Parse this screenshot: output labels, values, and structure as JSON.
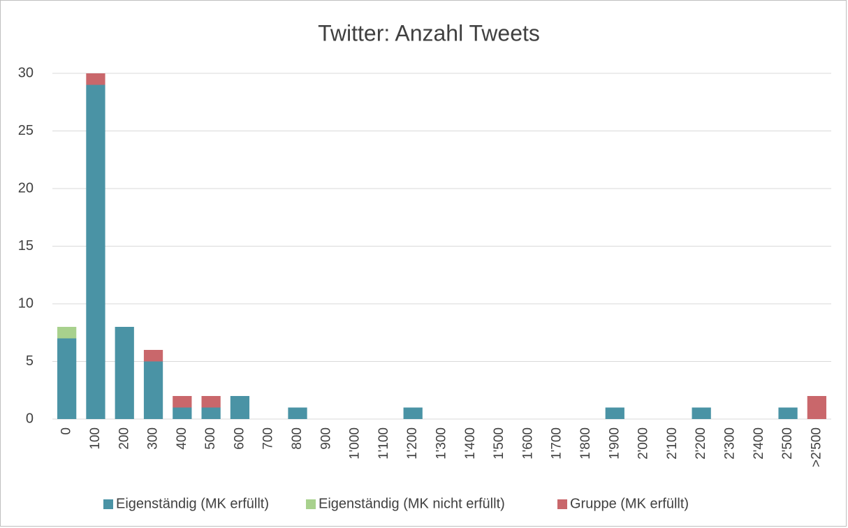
{
  "chart_data": {
    "type": "stacked_bar",
    "title": "Twitter: Anzahl Tweets",
    "categories": [
      "0",
      "100",
      "200",
      "300",
      "400",
      "500",
      "600",
      "700",
      "800",
      "900",
      "1'000",
      "1'100",
      "1'200",
      "1'300",
      "1'400",
      "1'500",
      "1'600",
      "1'700",
      "1'800",
      "1'900",
      "2'000",
      "2'100",
      "2'200",
      "2'300",
      "2'400",
      "2'500",
      ">2'500"
    ],
    "series": [
      {
        "name": "Eigenständig (MK erfüllt)",
        "color": "#4a93a5",
        "values": [
          7,
          29,
          8,
          5,
          1,
          1,
          2,
          0,
          1,
          0,
          0,
          0,
          1,
          0,
          0,
          0,
          0,
          0,
          0,
          1,
          0,
          0,
          1,
          0,
          0,
          1,
          0
        ]
      },
      {
        "name": "Eigenständig (MK nicht erfüllt)",
        "color": "#a8d18d",
        "values": [
          1,
          0,
          0,
          0,
          0,
          0,
          0,
          0,
          0,
          0,
          0,
          0,
          0,
          0,
          0,
          0,
          0,
          0,
          0,
          0,
          0,
          0,
          0,
          0,
          0,
          0,
          0
        ]
      },
      {
        "name": "Gruppe (MK erfüllt)",
        "color": "#c9676b",
        "values": [
          0,
          1,
          0,
          1,
          1,
          1,
          0,
          0,
          0,
          0,
          0,
          0,
          0,
          0,
          0,
          0,
          0,
          0,
          0,
          0,
          0,
          0,
          0,
          0,
          0,
          0,
          2
        ]
      }
    ],
    "ylim": [
      0,
      30
    ],
    "yticks": [
      0,
      5,
      10,
      15,
      20,
      25,
      30
    ],
    "grid": true,
    "legend": "bottom"
  }
}
